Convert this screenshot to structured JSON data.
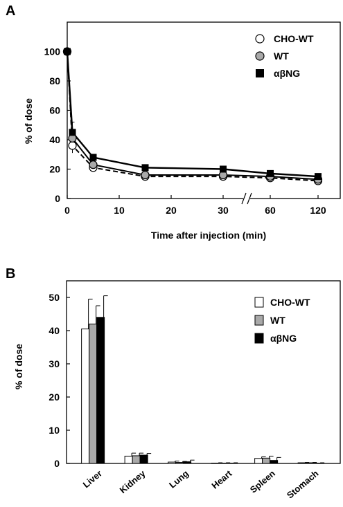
{
  "chart_data": [
    {
      "panel_letter": "A",
      "type": "line",
      "xlabel": "Time after injection (min)",
      "ylabel": "% of dose",
      "x_tick_labels": [
        "0",
        "10",
        "20",
        "30",
        "60",
        "120"
      ],
      "y_tick_labels": [
        "0",
        "20",
        "40",
        "60",
        "80",
        "100"
      ],
      "ylim": [
        0,
        120
      ],
      "x_axis_break": "between 30 and 60",
      "grid": false,
      "legend": "top-right",
      "x": [
        0,
        1,
        5,
        15,
        30,
        60,
        120
      ],
      "series": [
        {
          "name": "CHO-WT",
          "marker": "open-circle",
          "line": "dashed",
          "color": "#ffffff",
          "values": [
            100,
            36,
            21,
            15,
            15,
            14,
            12
          ],
          "errors": [
            0,
            5,
            2,
            2,
            2,
            1,
            1
          ]
        },
        {
          "name": "WT",
          "marker": "gray-circle",
          "line": "solid",
          "color": "#a9a9a9",
          "values": [
            100,
            41,
            23,
            16,
            16,
            15,
            13
          ],
          "errors": [
            0,
            6,
            2,
            2,
            2,
            1,
            1
          ]
        },
        {
          "name": "αβNG",
          "marker": "filled-square",
          "line": "solid",
          "color": "#000000",
          "values": [
            100,
            45,
            28,
            21,
            20,
            17,
            15
          ],
          "errors": [
            0,
            7,
            2,
            2,
            2,
            1,
            1
          ]
        }
      ]
    },
    {
      "panel_letter": "B",
      "type": "bar",
      "ylabel": "% of dose",
      "categories": [
        "Liver",
        "Kidney",
        "Lung",
        "Heart",
        "Spleen",
        "Stomach"
      ],
      "y_tick_labels": [
        "0",
        "10",
        "20",
        "30",
        "40",
        "50"
      ],
      "ylim": [
        0,
        55
      ],
      "grid": false,
      "legend": "top-right",
      "series": [
        {
          "name": "CHO-WT",
          "color": "#ffffff",
          "values": [
            40.5,
            2.2,
            0.4,
            0.1,
            1.5,
            0.2
          ],
          "errors": [
            9,
            0.9,
            0.3,
            0.1,
            0.5,
            0.1
          ]
        },
        {
          "name": "WT",
          "color": "#a9a9a9",
          "values": [
            42,
            2.3,
            0.3,
            0.1,
            1.6,
            0.2
          ],
          "errors": [
            5.5,
            0.8,
            0.3,
            0.1,
            0.6,
            0.1
          ]
        },
        {
          "name": "αβNG",
          "color": "#000000",
          "values": [
            44,
            2.5,
            0.5,
            0.1,
            0.9,
            0.1
          ],
          "errors": [
            6.5,
            0.5,
            0.5,
            0.1,
            0.9,
            0.1
          ]
        }
      ]
    }
  ]
}
